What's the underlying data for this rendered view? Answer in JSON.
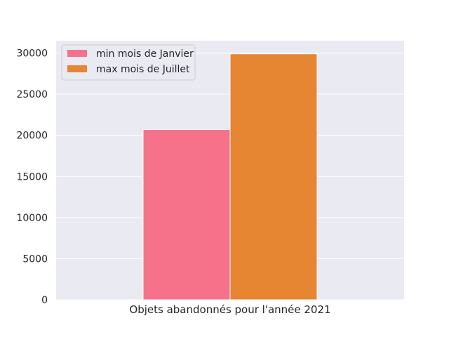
{
  "chart_data": {
    "type": "bar",
    "title": "",
    "categories": [
      "Objets abandonnés pour l'année 2021"
    ],
    "series": [
      {
        "name": "min mois de Janvier",
        "values": [
          20700
        ],
        "color": "#f5728a"
      },
      {
        "name": "max mois de Juillet",
        "values": [
          29900
        ],
        "color": "#e68532"
      }
    ],
    "xlabel": "Objets abandonnés pour l'année 2021",
    "ylabel": "",
    "ylim": [
      0,
      31500
    ],
    "yticks": [
      0,
      5000,
      10000,
      15000,
      20000,
      25000,
      30000
    ],
    "grid": true,
    "legend_position": "top-left",
    "background_color": "#eaeaf2",
    "grid_color": "#ffffff"
  }
}
